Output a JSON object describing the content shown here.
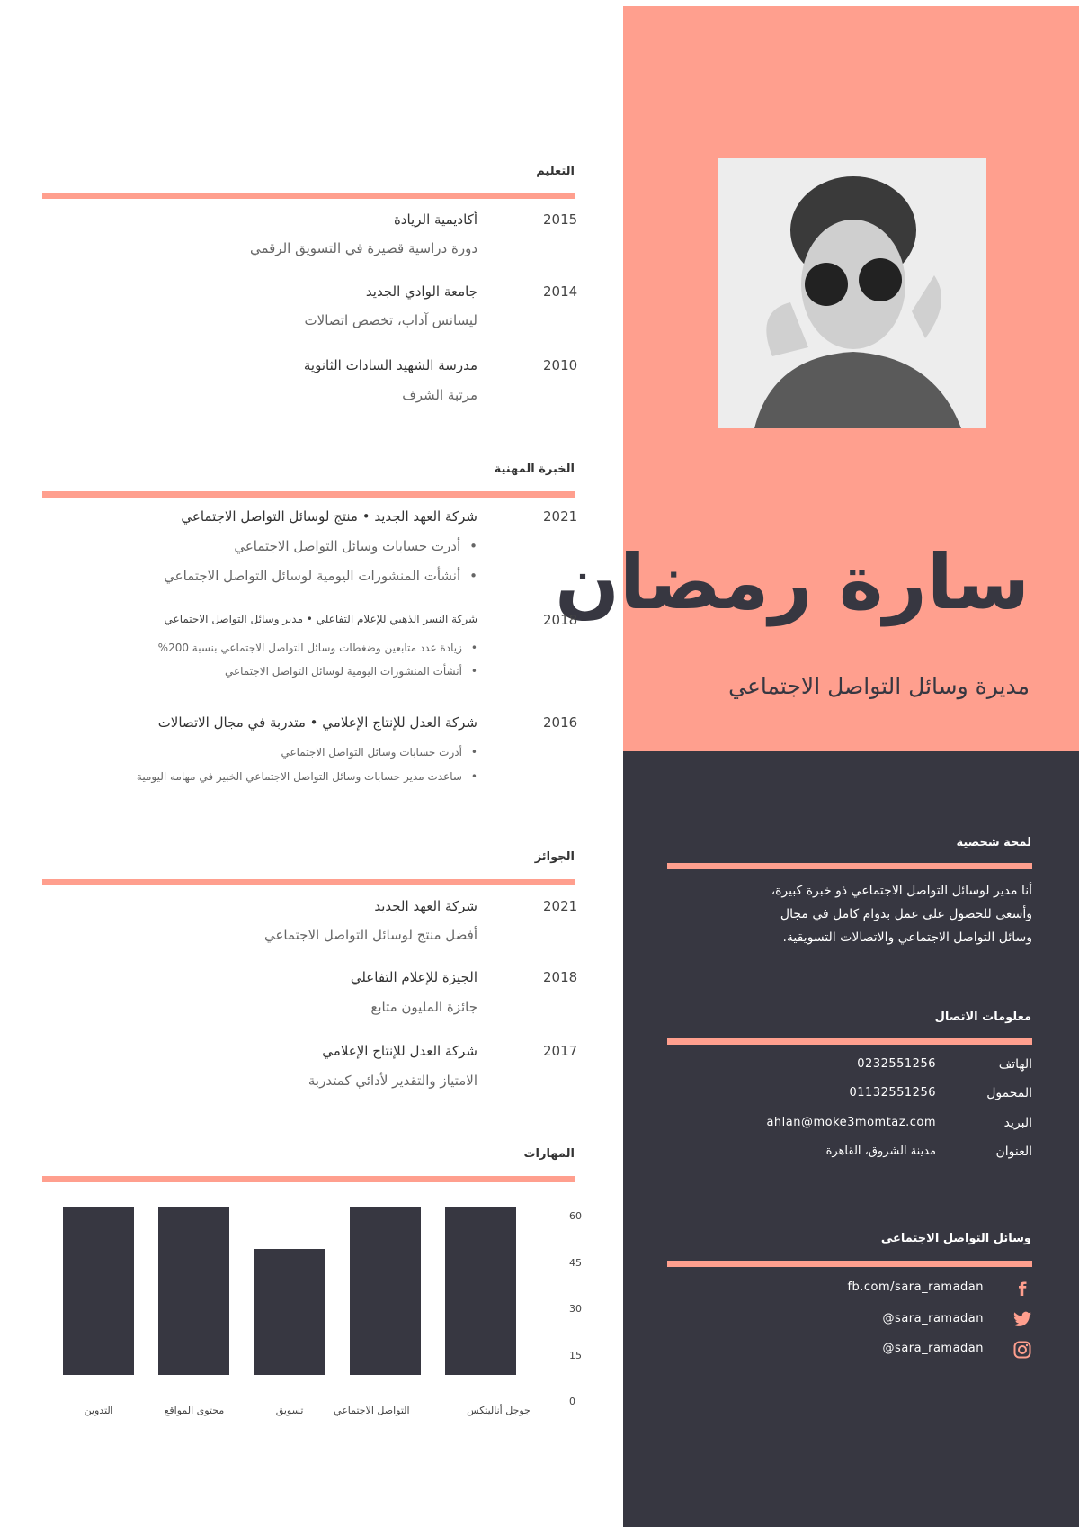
{
  "colors": {
    "accent": "#FF9F8E",
    "dark": "#373741"
  },
  "header": {
    "name": "سارة رمضان",
    "title": "مديرة وسائل التواصل الاجتماعي"
  },
  "education": {
    "heading": "التعليم",
    "items": [
      {
        "year": "2015",
        "title": "أكاديمية الريادة",
        "subtitle": "دورة دراسية قصيرة في التسويق الرقمي"
      },
      {
        "year": "2014",
        "title": "جامعة الوادي الجديد",
        "subtitle": "ليسانس آداب، تخصص اتصالات"
      },
      {
        "year": "2010",
        "title": "مدرسة الشهيد السادات الثانوية",
        "subtitle": "مرتبة الشرف"
      }
    ]
  },
  "experience": {
    "heading": "الخبرة المهنية",
    "items": [
      {
        "year": "2021",
        "title": "شركة العهد الجديد • منتج لوسائل التواصل الاجتماعي",
        "bullets": [
          "أدرت حسابات وسائل التواصل الاجتماعي",
          "أنشأت المنشورات اليومية لوسائل التواصل الاجتماعي"
        ]
      },
      {
        "year": "2018",
        "title": "شركة النسر الذهبي للإعلام التفاعلي • مدير وسائل التواصل الاجتماعي",
        "bullets": [
          "زيادة عدد متابعين وضغطات وسائل التواصل الاجتماعي بنسبة 200%",
          "أنشأت المنشورات اليومية لوسائل التواصل الاجتماعي"
        ]
      },
      {
        "year": "2016",
        "title": "شركة العدل للإنتاج الإعلامي • متدربة في مجال الاتصالات",
        "bullets": [
          "أدرت حسابات وسائل التواصل الاجتماعي",
          "ساعدت مدير حسابات وسائل التواصل الاجتماعي الخبير في مهامه اليومية"
        ]
      }
    ]
  },
  "awards": {
    "heading": "الجوائز",
    "items": [
      {
        "year": "2021",
        "title": "شركة العهد الجديد",
        "subtitle": "أفضل منتج لوسائل التواصل الاجتماعي"
      },
      {
        "year": "2018",
        "title": "الجيزة للإعلام التفاعلي",
        "subtitle": "جائزة المليون متابع"
      },
      {
        "year": "2017",
        "title": "شركة العدل للإنتاج الإعلامي",
        "subtitle": "الامتياز والتقدير لأدائي كمتدربة"
      }
    ]
  },
  "skills": {
    "heading": "المهارات"
  },
  "chart_data": {
    "type": "bar",
    "categories": [
      "جوجل أناليتكس",
      "التواصل الاجتماعي",
      "تسويق",
      "محتوى المواقع",
      "التدوين"
    ],
    "values": [
      60,
      60,
      45,
      60,
      60
    ],
    "yticks": [
      "60",
      "45",
      "30",
      "15",
      "0"
    ],
    "ylim": [
      0,
      60
    ],
    "grid": false,
    "title": "",
    "xlabel": "",
    "ylabel": ""
  },
  "profile": {
    "heading": "لمحة شخصية",
    "lines": [
      "أنا مدير لوسائل التواصل الاجتماعي ذو خبرة كبيرة،",
      "وأسعى للحصول على عمل بدوام كامل في مجال",
      "وسائل التواصل الاجتماعي والاتصالات التسويقية."
    ]
  },
  "contact": {
    "heading": "معلومات الاتصال",
    "items": [
      {
        "label": "الهاتف",
        "value": "0232551256"
      },
      {
        "label": "المحمول",
        "value": "01132551256"
      },
      {
        "label": "البريد",
        "value": "ahlan@moke3momtaz.com"
      },
      {
        "label": "العنوان",
        "value": "مدينة الشروق، القاهرة"
      }
    ]
  },
  "social": {
    "heading": "وسائل التواصل الاجتماعي",
    "items": [
      {
        "icon": "facebook-icon",
        "glyph": "f",
        "value": "fb.com/sara_ramadan"
      },
      {
        "icon": "twitter-icon",
        "glyph": "🐦",
        "value": "sara_ramadan@"
      },
      {
        "icon": "instagram-icon",
        "glyph": "◎",
        "value": "sara_ramadan@"
      }
    ]
  }
}
